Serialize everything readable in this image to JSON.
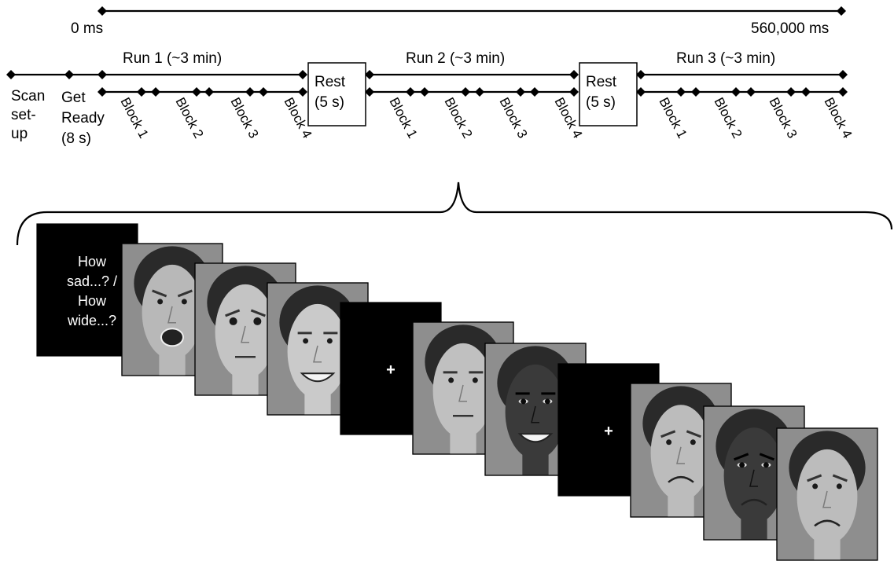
{
  "timeline": {
    "start_label": "0 ms",
    "end_label": "560,000 ms"
  },
  "phases": {
    "scan": [
      "Scan",
      "set-",
      "up"
    ],
    "ready": [
      "Get",
      "Ready",
      "(8 s)"
    ]
  },
  "runs": [
    {
      "label": "Run 1 (~3 min)",
      "blocks": [
        "Block 1",
        "Block 2",
        "Block 3",
        "Block 4"
      ]
    },
    {
      "label": "Run 2 (~3 min)",
      "blocks": [
        "Block 1",
        "Block 2",
        "Block 3",
        "Block 4"
      ]
    },
    {
      "label": "Run 3 (~3 min)",
      "blocks": [
        "Block 1",
        "Block 2",
        "Block 3",
        "Block 4"
      ]
    }
  ],
  "rests": [
    {
      "line1": "Rest",
      "line2": "(5 s)"
    },
    {
      "line1": "Rest",
      "line2": "(5 s)"
    }
  ],
  "stimulus_sequence": {
    "cue": [
      "How",
      "sad...? /",
      "How",
      "wide...?"
    ],
    "fixation": "+",
    "cards": [
      {
        "kind": "cue"
      },
      {
        "kind": "face",
        "expression": "angry"
      },
      {
        "kind": "face",
        "expression": "fearful"
      },
      {
        "kind": "face",
        "expression": "happy"
      },
      {
        "kind": "fixation"
      },
      {
        "kind": "face",
        "expression": "neutral"
      },
      {
        "kind": "face",
        "expression": "happy"
      },
      {
        "kind": "fixation"
      },
      {
        "kind": "face",
        "expression": "sad"
      },
      {
        "kind": "face",
        "expression": "sad"
      },
      {
        "kind": "face",
        "expression": "sad"
      }
    ]
  },
  "colors": {
    "line": "#000000",
    "card_black": "#000000",
    "face_background": "#8e8e8e"
  }
}
